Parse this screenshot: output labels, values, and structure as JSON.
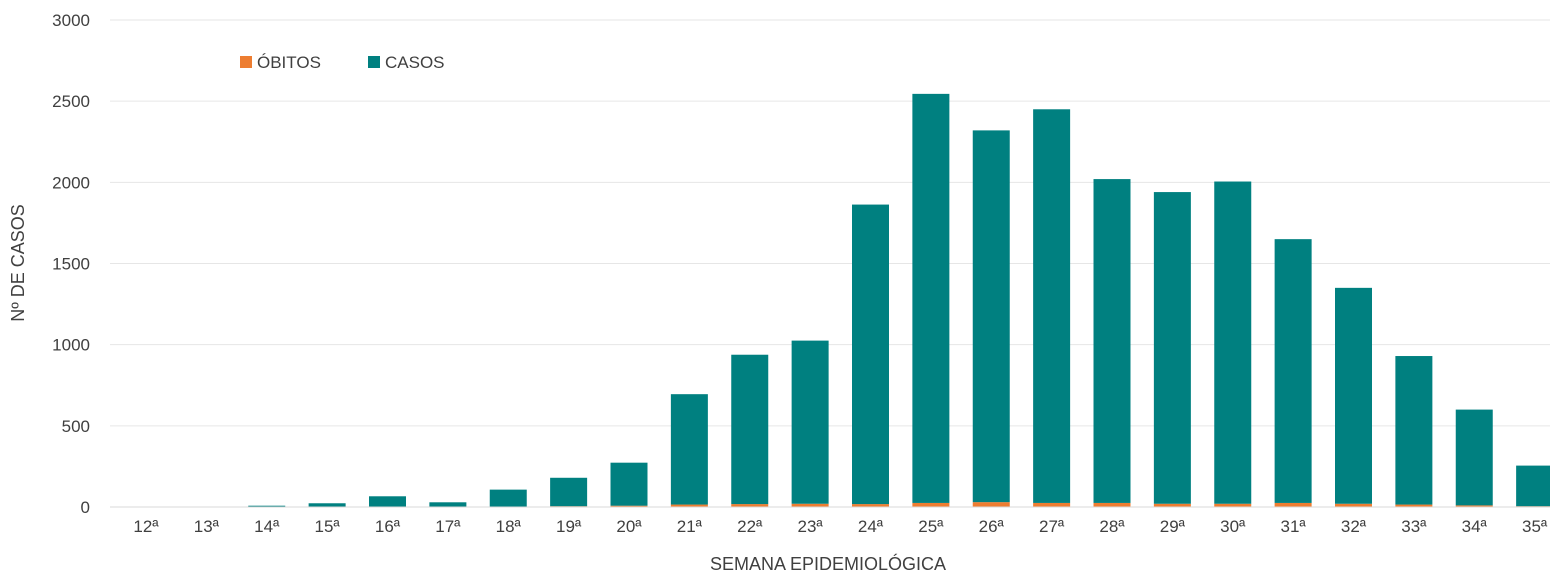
{
  "chart_data": {
    "type": "bar",
    "stacked": true,
    "title": "",
    "xlabel": "SEMANA EPIDEMIOLÓGICA",
    "ylabel": "Nº DE CASOS",
    "ylim": [
      0,
      3000
    ],
    "yticks": [
      "0",
      "500",
      "1000",
      "1500",
      "2000",
      "2500",
      "3000"
    ],
    "grid": true,
    "legend_position": "top-left",
    "categories": [
      "12ª",
      "13ª",
      "14ª",
      "15ª",
      "16ª",
      "17ª",
      "18ª",
      "19ª",
      "20ª",
      "21ª",
      "22ª",
      "23ª",
      "24ª",
      "25ª",
      "26ª",
      "27ª",
      "28ª",
      "29ª",
      "30ª",
      "31ª",
      "32ª",
      "33ª",
      "34ª",
      "35ª"
    ],
    "series": [
      {
        "name": "ÓBITOS",
        "color": "#ED7D31",
        "values": [
          0,
          0,
          0,
          1,
          1,
          1,
          2,
          5,
          8,
          15,
          18,
          20,
          18,
          25,
          30,
          25,
          25,
          20,
          20,
          25,
          20,
          15,
          10,
          5
        ]
      },
      {
        "name": "CASOS",
        "color": "#008080",
        "values": [
          1,
          2,
          8,
          22,
          65,
          28,
          105,
          175,
          265,
          680,
          920,
          1005,
          1845,
          2520,
          2290,
          2425,
          1995,
          1920,
          1985,
          1625,
          1330,
          915,
          590,
          250
        ]
      }
    ]
  }
}
